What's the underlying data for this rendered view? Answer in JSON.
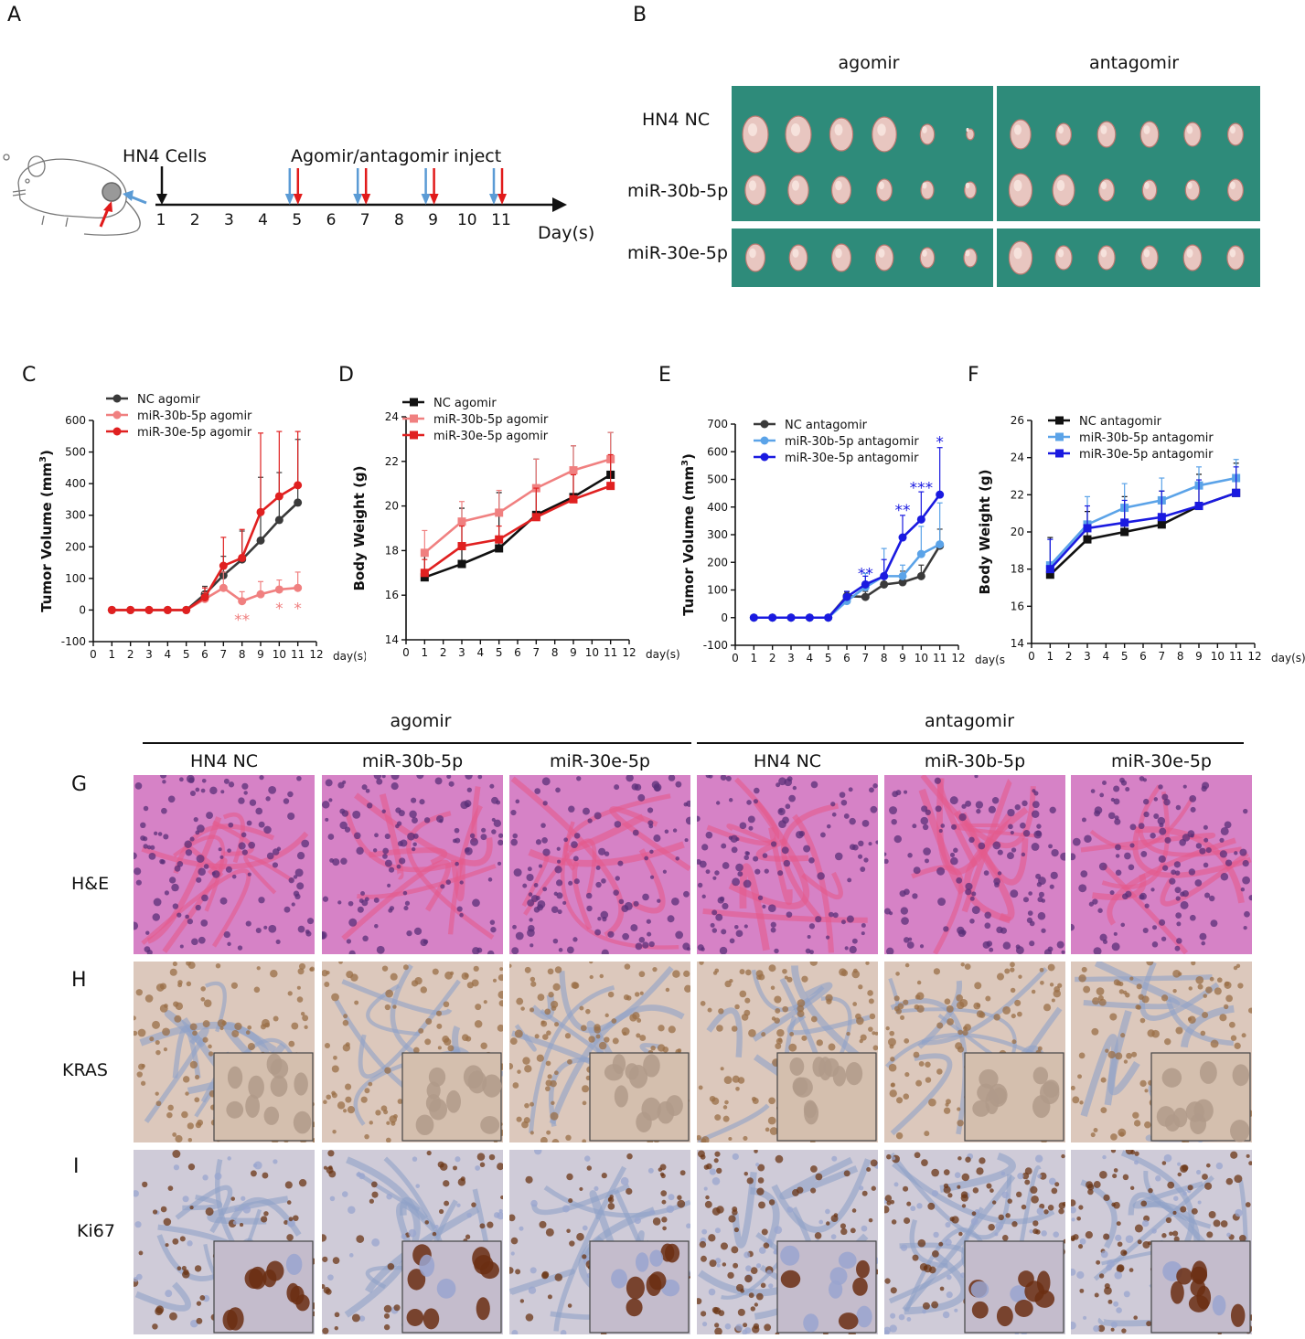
{
  "panels": {
    "A": "A",
    "B": "B",
    "C": "C",
    "D": "D",
    "E": "E",
    "F": "F",
    "G": "G",
    "H": "H",
    "I": "I"
  },
  "panel_a": {
    "cells_label": "HN4 Cells",
    "treat_label": "Agomir/antagomir",
    "inject_label": "inject",
    "axis_label": "Day(s)",
    "days": [
      "1",
      "2",
      "3",
      "4",
      "5",
      "6",
      "7",
      "8",
      "9",
      "10",
      "11"
    ],
    "injection_days": [
      5,
      7,
      9,
      11
    ],
    "colors": {
      "blue_arrow": "#5b9bd5",
      "red_arrow": "#e11a1a"
    }
  },
  "panel_b": {
    "col_labels": [
      "agomir",
      "antagomir"
    ],
    "row_labels": [
      "HN4 NC",
      "miR-30b-5p",
      "miR-30e-5p"
    ],
    "background_color": "#2e8b7a"
  },
  "panel_gi": {
    "group_labels": [
      "agomir",
      "antagomir"
    ],
    "col_labels": [
      "HN4 NC",
      "miR-30b-5p",
      "miR-30e-5p",
      "HN4 NC",
      "miR-30b-5p",
      "miR-30e-5p"
    ],
    "row_labels": [
      "H&E",
      "KRAS",
      "Ki67"
    ]
  },
  "chart_data": [
    {
      "id": "C",
      "type": "line",
      "xlabel": "day(s)",
      "ylabel": "Tumor Volume (mm3)",
      "ylim": [
        -100,
        600
      ],
      "xlim": [
        0,
        12
      ],
      "yticks": [
        -100,
        0,
        100,
        200,
        300,
        400,
        500,
        600
      ],
      "xticks": [
        0,
        1,
        2,
        3,
        4,
        5,
        6,
        7,
        8,
        9,
        10,
        11,
        12
      ],
      "legend_position": "top-left",
      "series": [
        {
          "name": "NC agomir",
          "color": "#3a3a3a",
          "marker": "circle",
          "x": [
            1,
            2,
            3,
            4,
            5,
            6,
            7,
            8,
            9,
            10,
            11
          ],
          "y": [
            0,
            0,
            0,
            0,
            0,
            50,
            110,
            160,
            220,
            285,
            340
          ],
          "err": [
            0,
            0,
            0,
            0,
            0,
            25,
            60,
            90,
            200,
            150,
            200
          ]
        },
        {
          "name": "miR-30b-5p agomir",
          "color": "#f08080",
          "marker": "circle",
          "x": [
            1,
            2,
            3,
            4,
            5,
            6,
            7,
            8,
            9,
            10,
            11
          ],
          "y": [
            0,
            0,
            0,
            0,
            0,
            35,
            70,
            28,
            50,
            65,
            70
          ],
          "err": [
            0,
            0,
            0,
            0,
            0,
            20,
            50,
            30,
            40,
            30,
            50
          ]
        },
        {
          "name": "miR-30e-5p agomir",
          "color": "#e02020",
          "marker": "circle",
          "x": [
            1,
            2,
            3,
            4,
            5,
            6,
            7,
            8,
            9,
            10,
            11
          ],
          "y": [
            0,
            0,
            0,
            0,
            0,
            40,
            140,
            165,
            310,
            360,
            395
          ],
          "err": [
            0,
            0,
            0,
            0,
            0,
            30,
            90,
            90,
            250,
            205,
            170
          ]
        }
      ],
      "annotations": [
        {
          "x": 8,
          "y": -30,
          "text": "**",
          "color": "#f08080"
        },
        {
          "x": 10,
          "y": 5,
          "text": "*",
          "color": "#f08080"
        },
        {
          "x": 11,
          "y": 5,
          "text": "*",
          "color": "#f08080"
        }
      ]
    },
    {
      "id": "D",
      "type": "line",
      "xlabel": "day(s)",
      "ylabel": "Body Weight (g)",
      "ylim": [
        14,
        24
      ],
      "xlim": [
        0,
        12
      ],
      "yticks": [
        14,
        16,
        18,
        20,
        22,
        24
      ],
      "xticks": [
        0,
        1,
        2,
        3,
        4,
        5,
        6,
        7,
        8,
        9,
        10,
        11,
        12
      ],
      "legend_position": "top-left",
      "series": [
        {
          "name": "NC agomir",
          "color": "#111111",
          "marker": "square",
          "x": [
            1,
            3,
            5,
            7,
            9,
            11
          ],
          "y": [
            16.8,
            17.4,
            18.1,
            19.6,
            20.4,
            21.4
          ],
          "err": [
            1.1,
            2.5,
            2.5,
            2.5,
            2.3,
            1.9
          ]
        },
        {
          "name": "miR-30b-5p agomir",
          "color": "#f08080",
          "marker": "square",
          "x": [
            1,
            3,
            5,
            7,
            9,
            11
          ],
          "y": [
            17.9,
            19.3,
            19.7,
            20.8,
            21.6,
            22.1
          ],
          "err": [
            1.0,
            0.9,
            1.0,
            1.3,
            1.1,
            1.2
          ]
        },
        {
          "name": "miR-30e-5p agomir",
          "color": "#e02020",
          "marker": "square",
          "x": [
            1,
            3,
            5,
            7,
            9,
            11
          ],
          "y": [
            17.0,
            18.2,
            18.5,
            19.5,
            20.3,
            20.9
          ],
          "err": [
            0.6,
            0.9,
            0.6,
            1.3,
            1.1,
            1.4
          ]
        }
      ]
    },
    {
      "id": "E",
      "type": "line",
      "xlabel": "day(s)",
      "ylabel": "Tumor Volume (mm3)",
      "ylim": [
        -100,
        700
      ],
      "xlim": [
        0,
        12
      ],
      "yticks": [
        -100,
        0,
        100,
        200,
        300,
        400,
        500,
        600,
        700
      ],
      "xticks": [
        0,
        1,
        2,
        3,
        4,
        5,
        6,
        7,
        8,
        9,
        10,
        11,
        12
      ],
      "legend_position": "top-left",
      "series": [
        {
          "name": "NC antagomir",
          "color": "#3a3a3a",
          "marker": "circle",
          "x": [
            1,
            2,
            3,
            4,
            5,
            6,
            7,
            8,
            9,
            10,
            11
          ],
          "y": [
            0,
            0,
            0,
            0,
            0,
            78,
            75,
            120,
            128,
            150,
            260
          ],
          "err": [
            0,
            0,
            0,
            0,
            0,
            15,
            20,
            30,
            40,
            40,
            60
          ]
        },
        {
          "name": "miR-30b-5p antagomir",
          "color": "#5ba3e8",
          "marker": "circle",
          "x": [
            1,
            2,
            3,
            4,
            5,
            6,
            7,
            8,
            9,
            10,
            11
          ],
          "y": [
            0,
            0,
            0,
            0,
            0,
            60,
            110,
            150,
            150,
            230,
            265
          ],
          "err": [
            0,
            0,
            0,
            0,
            0,
            20,
            50,
            100,
            40,
            100,
            150
          ]
        },
        {
          "name": "miR-30e-5p antagomir",
          "color": "#1a1ae0",
          "marker": "circle",
          "x": [
            1,
            2,
            3,
            4,
            5,
            6,
            7,
            8,
            9,
            10,
            11
          ],
          "y": [
            0,
            0,
            0,
            0,
            0,
            75,
            120,
            150,
            290,
            355,
            445
          ],
          "err": [
            0,
            0,
            0,
            0,
            0,
            20,
            30,
            60,
            80,
            100,
            170
          ]
        }
      ],
      "annotations": [
        {
          "x": 7,
          "y": 160,
          "text": "**",
          "color": "#1a1ae0"
        },
        {
          "x": 9,
          "y": 390,
          "text": "**",
          "color": "#1a1ae0"
        },
        {
          "x": 10,
          "y": 470,
          "text": "***",
          "color": "#1a1ae0"
        },
        {
          "x": 11,
          "y": 635,
          "text": "*",
          "color": "#1a1ae0"
        }
      ]
    },
    {
      "id": "F",
      "type": "line",
      "xlabel": "day(s)",
      "ylabel": "Body Weight (g)",
      "ylim": [
        14,
        26
      ],
      "xlim": [
        0,
        12
      ],
      "yticks": [
        14,
        16,
        18,
        20,
        22,
        24,
        26
      ],
      "xticks": [
        0,
        1,
        2,
        3,
        4,
        5,
        6,
        7,
        8,
        9,
        10,
        11,
        12
      ],
      "legend_position": "top-left",
      "series": [
        {
          "name": "NC antagomir",
          "color": "#111111",
          "marker": "square",
          "x": [
            1,
            3,
            5,
            7,
            9,
            11
          ],
          "y": [
            17.7,
            19.6,
            20.0,
            20.4,
            21.4,
            22.1
          ],
          "err": [
            2.0,
            1.5,
            1.9,
            1.8,
            1.7,
            1.6
          ]
        },
        {
          "name": "miR-30b-5p antagomir",
          "color": "#5ba3e8",
          "marker": "square",
          "x": [
            1,
            3,
            5,
            7,
            9,
            11
          ],
          "y": [
            18.2,
            20.4,
            21.3,
            21.7,
            22.5,
            22.9
          ],
          "err": [
            1.4,
            1.5,
            1.3,
            1.2,
            1.0,
            1.0
          ]
        },
        {
          "name": "miR-30e-5p antagomir",
          "color": "#1a1ae0",
          "marker": "square",
          "x": [
            1,
            3,
            5,
            7,
            9,
            11
          ],
          "y": [
            18.0,
            20.2,
            20.5,
            20.8,
            21.4,
            22.1
          ],
          "err": [
            1.6,
            1.2,
            1.2,
            1.4,
            1.4,
            1.4
          ]
        }
      ]
    }
  ]
}
